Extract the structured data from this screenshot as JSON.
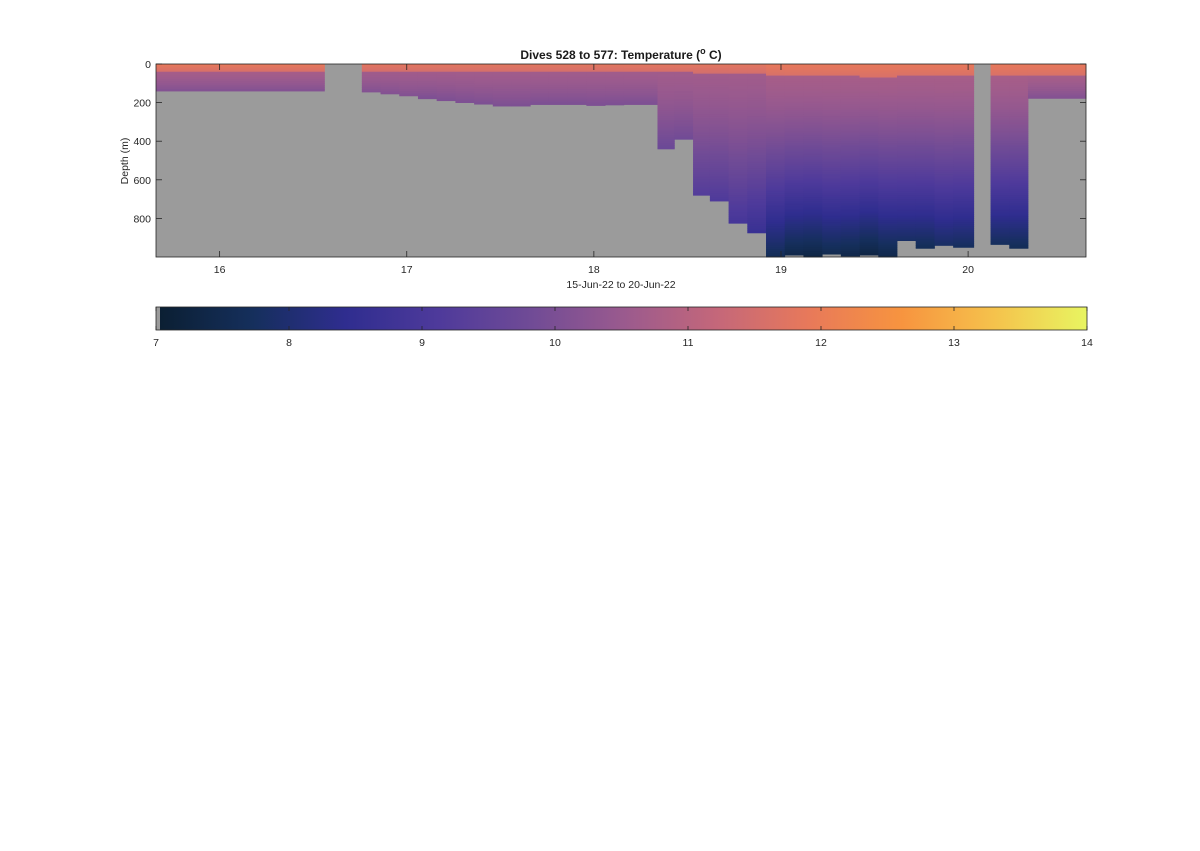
{
  "chart_data": {
    "type": "heatmap",
    "title": "Dives 528 to 577: Temperature (",
    "title_superscript": "o",
    "title_suffix": " C)",
    "xlabel": "15-Jun-22 to 20-Jun-22",
    "ylabel": "Depth (m)",
    "xlim": [
      15.66,
      20.63
    ],
    "ylim": [
      0,
      1000
    ],
    "y_reversed": true,
    "x_ticks": [
      16,
      17,
      18,
      19,
      20
    ],
    "x_tick_labels": [
      "16",
      "17",
      "18",
      "19",
      "20"
    ],
    "y_ticks": [
      0,
      200,
      400,
      600,
      800
    ],
    "y_tick_labels": [
      "0",
      "200",
      "400",
      "600",
      "800"
    ],
    "grid": false,
    "no_data_color": "#9b9b9b",
    "colorbar": {
      "location": "below",
      "min": 7,
      "max": 14,
      "ticks": [
        7,
        8,
        9,
        10,
        11,
        12,
        13,
        14
      ],
      "tick_labels": [
        "7",
        "8",
        "9",
        "10",
        "11",
        "12",
        "13",
        "14"
      ],
      "colormap": [
        "#0b1f33",
        "#152f5c",
        "#2f2d8f",
        "#4e3a9b",
        "#704b96",
        "#9a5a8e",
        "#c4677a",
        "#e8795a",
        "#f7943f",
        "#f5c24c",
        "#e8f561"
      ]
    },
    "profiles": [
      {
        "x0": 15.66,
        "x1": 16.56,
        "surf_temp": 11.9,
        "mix_depth": 35,
        "max_depth": 140,
        "deep_temp": 10.1
      },
      {
        "x0": 16.56,
        "x1": 16.76,
        "surf_temp": null,
        "mix_depth": 0,
        "max_depth": 0,
        "deep_temp": null
      },
      {
        "x0": 16.76,
        "x1": 16.86,
        "surf_temp": 11.8,
        "mix_depth": 38,
        "max_depth": 145,
        "deep_temp": 10.1
      },
      {
        "x0": 16.86,
        "x1": 16.96,
        "surf_temp": 11.8,
        "mix_depth": 38,
        "max_depth": 155,
        "deep_temp": 10.1
      },
      {
        "x0": 16.96,
        "x1": 17.06,
        "surf_temp": 11.8,
        "mix_depth": 40,
        "max_depth": 165,
        "deep_temp": 10.1
      },
      {
        "x0": 17.06,
        "x1": 17.16,
        "surf_temp": 11.8,
        "mix_depth": 40,
        "max_depth": 180,
        "deep_temp": 10.0
      },
      {
        "x0": 17.16,
        "x1": 17.26,
        "surf_temp": 11.8,
        "mix_depth": 40,
        "max_depth": 190,
        "deep_temp": 10.0
      },
      {
        "x0": 17.26,
        "x1": 17.36,
        "surf_temp": 11.8,
        "mix_depth": 42,
        "max_depth": 200,
        "deep_temp": 10.0
      },
      {
        "x0": 17.36,
        "x1": 17.46,
        "surf_temp": 11.8,
        "mix_depth": 42,
        "max_depth": 208,
        "deep_temp": 10.0
      },
      {
        "x0": 17.46,
        "x1": 17.56,
        "surf_temp": 11.8,
        "mix_depth": 42,
        "max_depth": 218,
        "deep_temp": 10.0
      },
      {
        "x0": 17.56,
        "x1": 17.66,
        "surf_temp": 11.8,
        "mix_depth": 42,
        "max_depth": 218,
        "deep_temp": 10.0
      },
      {
        "x0": 17.66,
        "x1": 17.76,
        "surf_temp": 11.8,
        "mix_depth": 42,
        "max_depth": 210,
        "deep_temp": 10.0
      },
      {
        "x0": 17.76,
        "x1": 17.86,
        "surf_temp": 11.8,
        "mix_depth": 42,
        "max_depth": 210,
        "deep_temp": 10.0
      },
      {
        "x0": 17.86,
        "x1": 17.96,
        "surf_temp": 11.8,
        "mix_depth": 42,
        "max_depth": 210,
        "deep_temp": 10.0
      },
      {
        "x0": 17.96,
        "x1": 18.06,
        "surf_temp": 11.8,
        "mix_depth": 42,
        "max_depth": 215,
        "deep_temp": 10.0
      },
      {
        "x0": 18.06,
        "x1": 18.16,
        "surf_temp": 11.8,
        "mix_depth": 42,
        "max_depth": 212,
        "deep_temp": 10.0
      },
      {
        "x0": 18.16,
        "x1": 18.34,
        "surf_temp": 11.8,
        "mix_depth": 44,
        "max_depth": 210,
        "deep_temp": 10.0
      },
      {
        "x0": 18.34,
        "x1": 18.43,
        "surf_temp": 11.8,
        "mix_depth": 44,
        "max_depth": 440,
        "deep_temp": 9.7
      },
      {
        "x0": 18.43,
        "x1": 18.53,
        "surf_temp": 11.8,
        "mix_depth": 44,
        "max_depth": 390,
        "deep_temp": 9.8
      },
      {
        "x0": 18.53,
        "x1": 18.62,
        "surf_temp": 11.8,
        "mix_depth": 45,
        "max_depth": 680,
        "deep_temp": 9.2
      },
      {
        "x0": 18.62,
        "x1": 18.72,
        "surf_temp": 11.8,
        "mix_depth": 45,
        "max_depth": 710,
        "deep_temp": 9.1
      },
      {
        "x0": 18.72,
        "x1": 18.82,
        "surf_temp": 11.8,
        "mix_depth": 48,
        "max_depth": 825,
        "deep_temp": 8.9
      },
      {
        "x0": 18.82,
        "x1": 18.92,
        "surf_temp": 11.8,
        "mix_depth": 48,
        "max_depth": 875,
        "deep_temp": 8.6
      },
      {
        "x0": 18.92,
        "x1": 19.02,
        "surf_temp": 11.9,
        "mix_depth": 55,
        "max_depth": 1000,
        "deep_temp": 7.6
      },
      {
        "x0": 19.02,
        "x1": 19.12,
        "surf_temp": 11.9,
        "mix_depth": 60,
        "max_depth": 990,
        "deep_temp": 7.4
      },
      {
        "x0": 19.12,
        "x1": 19.22,
        "surf_temp": 11.9,
        "mix_depth": 60,
        "max_depth": 1000,
        "deep_temp": 7.3
      },
      {
        "x0": 19.22,
        "x1": 19.32,
        "surf_temp": 11.9,
        "mix_depth": 62,
        "max_depth": 985,
        "deep_temp": 7.5
      },
      {
        "x0": 19.32,
        "x1": 19.42,
        "surf_temp": 11.9,
        "mix_depth": 62,
        "max_depth": 995,
        "deep_temp": 7.4
      },
      {
        "x0": 19.42,
        "x1": 19.52,
        "surf_temp": 11.9,
        "mix_depth": 65,
        "max_depth": 990,
        "deep_temp": 7.3
      },
      {
        "x0": 19.52,
        "x1": 19.62,
        "surf_temp": 11.9,
        "mix_depth": 65,
        "max_depth": 1000,
        "deep_temp": 7.4
      },
      {
        "x0": 19.62,
        "x1": 19.72,
        "surf_temp": 11.9,
        "mix_depth": 60,
        "max_depth": 915,
        "deep_temp": 7.8
      },
      {
        "x0": 19.72,
        "x1": 19.82,
        "surf_temp": 11.9,
        "mix_depth": 60,
        "max_depth": 955,
        "deep_temp": 7.6
      },
      {
        "x0": 19.82,
        "x1": 19.92,
        "surf_temp": 11.9,
        "mix_depth": 62,
        "max_depth": 940,
        "deep_temp": 7.8
      },
      {
        "x0": 19.92,
        "x1": 20.03,
        "surf_temp": 11.9,
        "mix_depth": 62,
        "max_depth": 950,
        "deep_temp": 7.7
      },
      {
        "x0": 20.03,
        "x1": 20.12,
        "surf_temp": null,
        "mix_depth": 0,
        "max_depth": 0,
        "deep_temp": null
      },
      {
        "x0": 20.12,
        "x1": 20.22,
        "surf_temp": 11.9,
        "mix_depth": 60,
        "max_depth": 935,
        "deep_temp": 7.7
      },
      {
        "x0": 20.22,
        "x1": 20.32,
        "surf_temp": 11.9,
        "mix_depth": 60,
        "max_depth": 955,
        "deep_temp": 7.6
      },
      {
        "x0": 20.32,
        "x1": 20.63,
        "surf_temp": 11.9,
        "mix_depth": 58,
        "max_depth": 178,
        "deep_temp": 10.1
      }
    ]
  }
}
